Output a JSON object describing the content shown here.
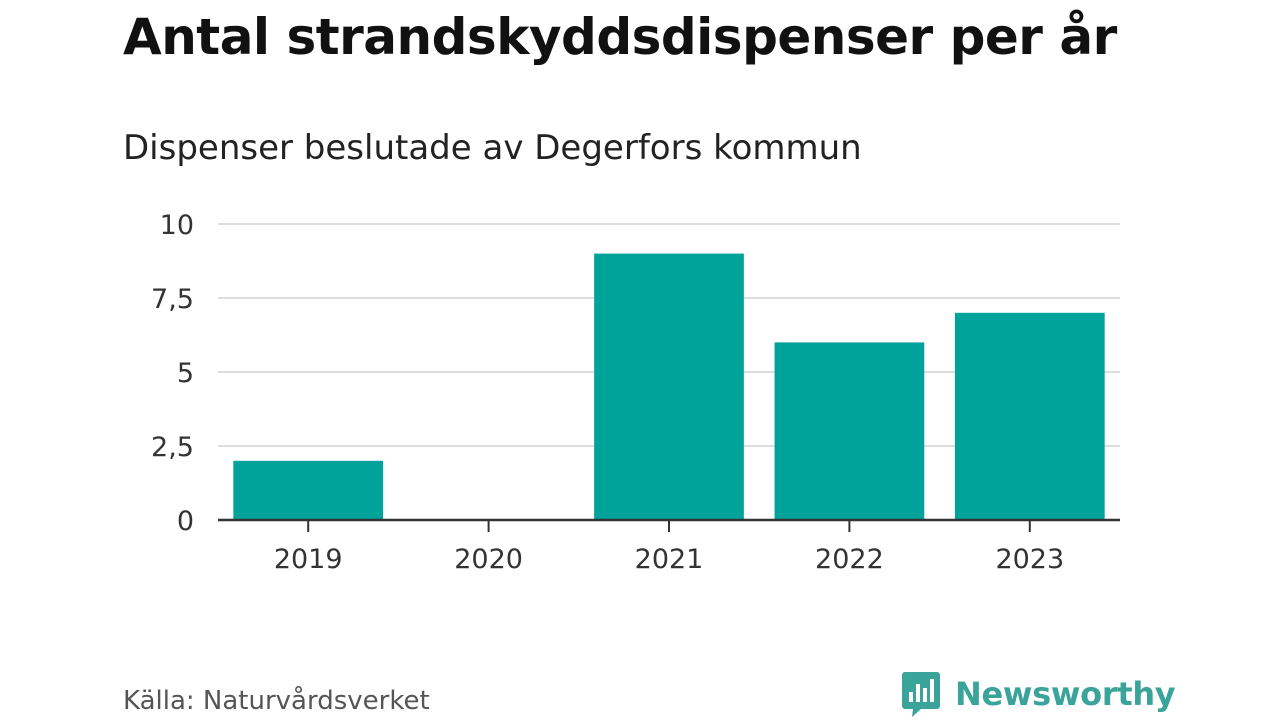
{
  "header": {
    "title": "Antal strandskyddsdispenser per år",
    "subtitle": "Dispenser beslutade av Degerfors kommun"
  },
  "footer": {
    "source": "Källa: Naturvårdsverket",
    "brand_name": "Newsworthy",
    "brand_icon": "bar-chart-speech-bubble-icon"
  },
  "colors": {
    "bar": "#00a39a",
    "gridline": "#dddddd",
    "axis": "#333333",
    "brand": "#3aa39a"
  },
  "chart_data": {
    "type": "bar",
    "categories": [
      "2019",
      "2020",
      "2021",
      "2022",
      "2023"
    ],
    "values": [
      2,
      0,
      9,
      6,
      7
    ],
    "title": "Antal strandskyddsdispenser per år",
    "subtitle": "Dispenser beslutade av Degerfors kommun",
    "xlabel": "",
    "ylabel": "",
    "ylim": [
      0,
      10
    ],
    "yticks": [
      0,
      2.5,
      5,
      7.5,
      10
    ],
    "ytick_labels": [
      "0",
      "2,5",
      "5",
      "7,5",
      "10"
    ],
    "grid": true,
    "legend": "none"
  }
}
